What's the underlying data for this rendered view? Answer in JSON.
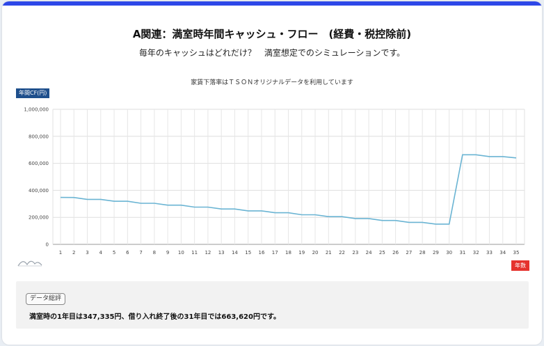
{
  "header": {
    "title": "A関連：満室時年間キャッシュ・フロー　(経費・税控除前)",
    "subtitle": "毎年のキャッシュはどれだけ？　満室想定でのシミュレーションです。"
  },
  "chart_data": {
    "type": "line",
    "title": "家賃下落率はＴＳＯＮオリジナルデータを利用しています",
    "ylabel": "年間CF(円)",
    "xlabel": "年数",
    "ylim": [
      0,
      1000000
    ],
    "yticks": [
      "0",
      "200,000",
      "400,000",
      "600,000",
      "800,000",
      "1,000,000"
    ],
    "yticks_values": [
      0,
      200000,
      400000,
      600000,
      800000,
      1000000
    ],
    "grid": true,
    "categories": [
      "1",
      "2",
      "3",
      "4",
      "5",
      "6",
      "7",
      "8",
      "9",
      "10",
      "11",
      "12",
      "13",
      "14",
      "15",
      "16",
      "17",
      "18",
      "19",
      "20",
      "21",
      "22",
      "23",
      "24",
      "25",
      "26",
      "27",
      "28",
      "29",
      "30",
      "31",
      "32",
      "33",
      "34",
      "35"
    ],
    "series": [
      {
        "values": [
          347335,
          347000,
          333000,
          333000,
          319000,
          319000,
          304000,
          304000,
          290000,
          290000,
          276000,
          276000,
          262000,
          262000,
          248000,
          248000,
          234000,
          234000,
          219000,
          219000,
          205000,
          205000,
          191000,
          191000,
          177000,
          177000,
          163000,
          163000,
          150000,
          150000,
          663620,
          663620,
          650000,
          650000,
          640000
        ],
        "color": "#6ab4d3"
      }
    ]
  },
  "summary": {
    "tag": "データ総評",
    "text": "満室時の1年目は347,335円、借り入れ終了後の31年目では663,620円です。"
  },
  "colors": {
    "accent_bar": "#2d47e8",
    "ylabel_badge": "#1e4f8c",
    "xlabel_badge": "#e5322d",
    "line": "#6ab4d3"
  }
}
